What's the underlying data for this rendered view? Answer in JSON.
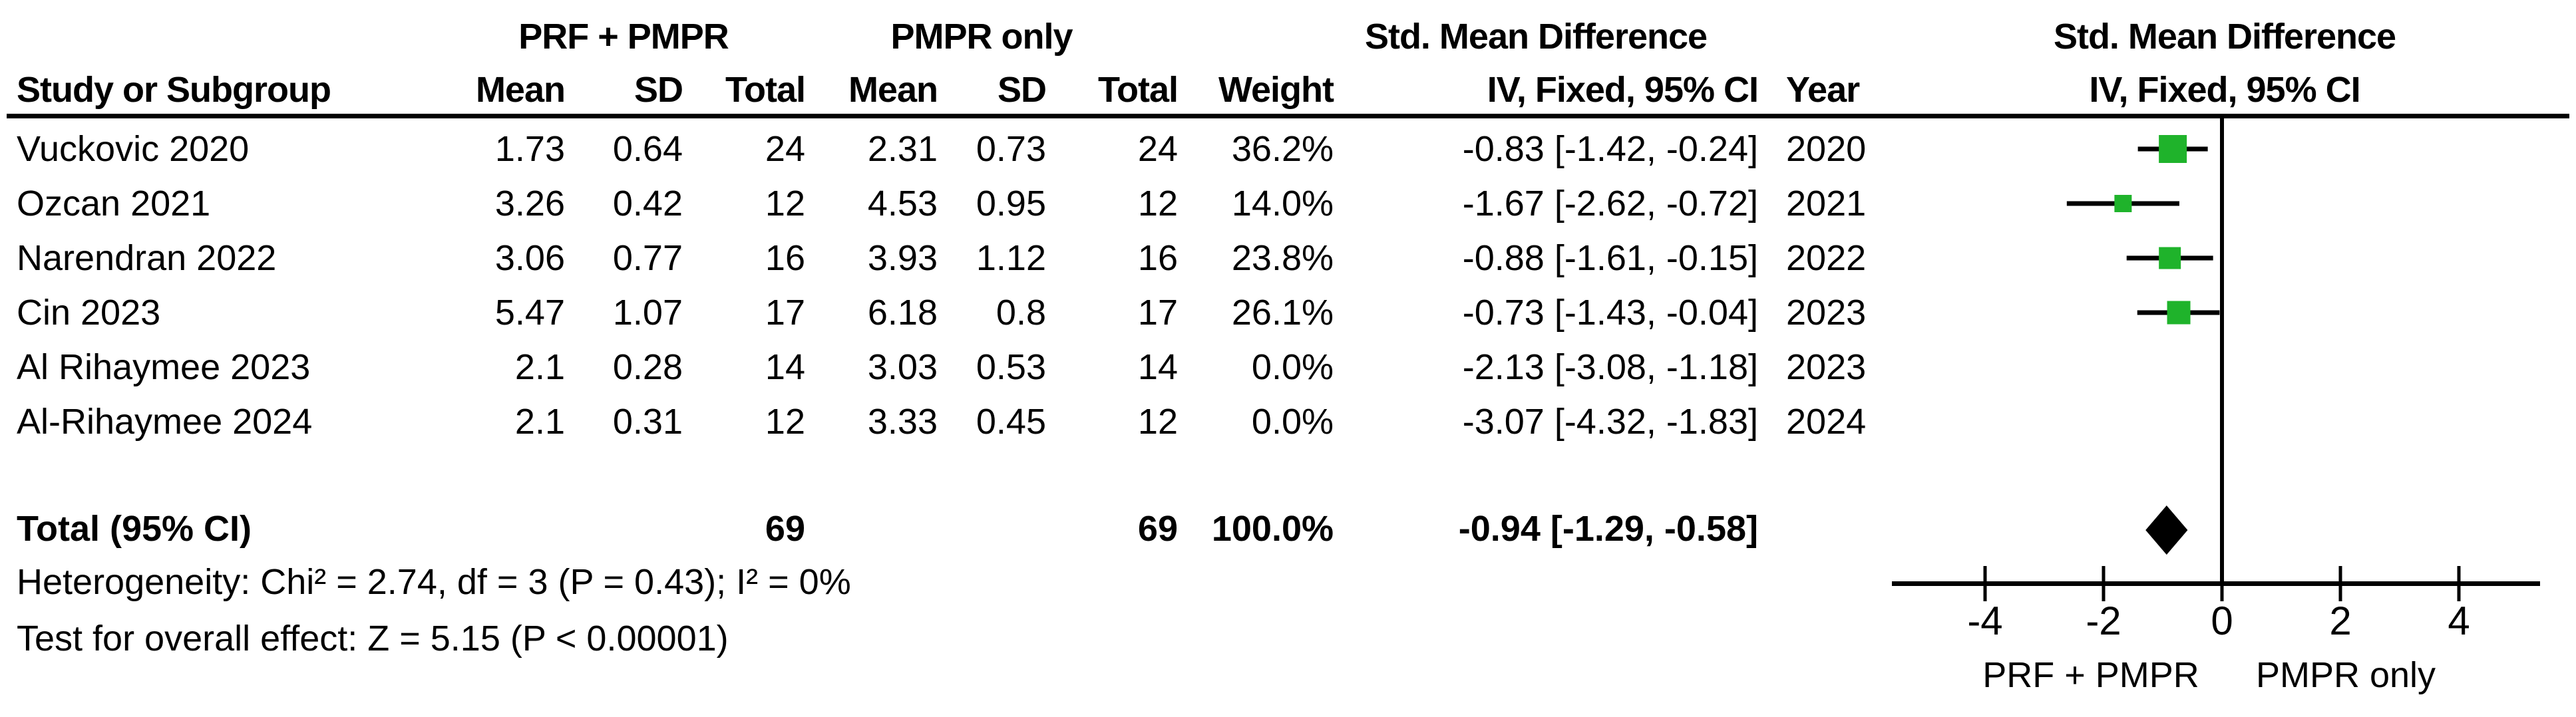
{
  "chart_data": {
    "type": "forest",
    "title": "Std. Mean Difference",
    "method_label": "IV, Fixed, 95% CI",
    "header": {
      "study_col": "Study or Subgroup",
      "group1": "PRF + PMPR",
      "group2": "PMPR only",
      "mean": "Mean",
      "sd": "SD",
      "total": "Total",
      "weight": "Weight",
      "smd": "Std. Mean Difference",
      "method": "IV, Fixed, 95% CI",
      "year": "Year"
    },
    "studies": [
      {
        "name": "Vuckovic 2020",
        "mean1": "1.73",
        "sd1": "0.64",
        "total1": "24",
        "mean2": "2.31",
        "sd2": "0.73",
        "total2": "24",
        "weight_str": "36.2%",
        "ci_str": "-0.83 [-1.42, -0.24]",
        "year": "2020",
        "est": -0.83,
        "lo": -1.42,
        "hi": -0.24,
        "weight_pct": 36.2
      },
      {
        "name": "Ozcan 2021",
        "mean1": "3.26",
        "sd1": "0.42",
        "total1": "12",
        "mean2": "4.53",
        "sd2": "0.95",
        "total2": "12",
        "weight_str": "14.0%",
        "ci_str": "-1.67 [-2.62, -0.72]",
        "year": "2021",
        "est": -1.67,
        "lo": -2.62,
        "hi": -0.72,
        "weight_pct": 14.0
      },
      {
        "name": "Narendran 2022",
        "mean1": "3.06",
        "sd1": "0.77",
        "total1": "16",
        "mean2": "3.93",
        "sd2": "1.12",
        "total2": "16",
        "weight_str": "23.8%",
        "ci_str": "-0.88 [-1.61, -0.15]",
        "year": "2022",
        "est": -0.88,
        "lo": -1.61,
        "hi": -0.15,
        "weight_pct": 23.8
      },
      {
        "name": "Cin 2023",
        "mean1": "5.47",
        "sd1": "1.07",
        "total1": "17",
        "mean2": "6.18",
        "sd2": "0.8",
        "total2": "17",
        "weight_str": "26.1%",
        "ci_str": "-0.73 [-1.43, -0.04]",
        "year": "2023",
        "est": -0.73,
        "lo": -1.43,
        "hi": -0.04,
        "weight_pct": 26.1
      },
      {
        "name": "Al Rihaymee 2023",
        "mean1": "2.1",
        "sd1": "0.28",
        "total1": "14",
        "mean2": "3.03",
        "sd2": "0.53",
        "total2": "14",
        "weight_str": "0.0%",
        "ci_str": "-2.13 [-3.08, -1.18]",
        "year": "2023",
        "est": -2.13,
        "lo": -3.08,
        "hi": -1.18,
        "weight_pct": 0.0
      },
      {
        "name": "Al-Rihaymee 2024",
        "mean1": "2.1",
        "sd1": "0.31",
        "total1": "12",
        "mean2": "3.33",
        "sd2": "0.45",
        "total2": "12",
        "weight_str": "0.0%",
        "ci_str": "-3.07 [-4.32, -1.83]",
        "year": "2024",
        "est": -3.07,
        "lo": -4.32,
        "hi": -1.83,
        "weight_pct": 0.0
      }
    ],
    "total_row": {
      "label": "Total (95% CI)",
      "total1": "69",
      "total2": "69",
      "weight_str": "100.0%",
      "ci_str": "-0.94 [-1.29, -0.58]",
      "est": -0.94,
      "lo": -1.29,
      "hi": -0.58
    },
    "footer": {
      "heterogeneity": "Heterogeneity: Chi² = 2.74, df = 3 (P = 0.43); I² = 0%",
      "overall_effect": "Test for overall effect: Z = 5.15 (P < 0.00001)"
    },
    "x_axis": {
      "ticks": [
        -4,
        -2,
        0,
        2,
        4
      ],
      "tick_labels": [
        "-4",
        "-2",
        "0",
        "2",
        "4"
      ],
      "left_label": "PRF + PMPR",
      "right_label": "PMPR only"
    },
    "colors": {
      "marker": "#1fb32b",
      "line": "#000000"
    },
    "layout_hint": {
      "zero_line": 0,
      "grid": false,
      "scale": "linear"
    }
  }
}
